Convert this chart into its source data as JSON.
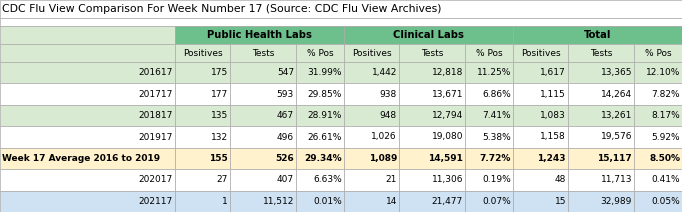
{
  "title": "CDC Flu View Comparison For Week Number 17 (Source: CDC Flu View Archives)",
  "group_labels": [
    "Public Health Labs",
    "Clinical Labs",
    "Total"
  ],
  "sub_labels": [
    "Positives",
    "Tests",
    "% Pos",
    "Positives",
    "Tests",
    "% Pos",
    "Positives",
    "Tests",
    "% Pos"
  ],
  "rows": [
    {
      "label": "201617",
      "label_align": "right",
      "bold": false,
      "bg": "#d9ead3",
      "values": [
        "175",
        "547",
        "31.99%",
        "1,442",
        "12,818",
        "11.25%",
        "1,617",
        "13,365",
        "12.10%"
      ]
    },
    {
      "label": "201717",
      "label_align": "right",
      "bold": false,
      "bg": "#ffffff",
      "values": [
        "177",
        "593",
        "29.85%",
        "938",
        "13,671",
        "6.86%",
        "1,115",
        "14,264",
        "7.82%"
      ]
    },
    {
      "label": "201817",
      "label_align": "right",
      "bold": false,
      "bg": "#d9ead3",
      "values": [
        "135",
        "467",
        "28.91%",
        "948",
        "12,794",
        "7.41%",
        "1,083",
        "13,261",
        "8.17%"
      ]
    },
    {
      "label": "201917",
      "label_align": "right",
      "bold": false,
      "bg": "#ffffff",
      "values": [
        "132",
        "496",
        "26.61%",
        "1,026",
        "19,080",
        "5.38%",
        "1,158",
        "19,576",
        "5.92%"
      ]
    },
    {
      "label": "Week 17 Average 2016 to 2019",
      "label_align": "left",
      "bold": true,
      "bg": "#fff2cc",
      "values": [
        "155",
        "526",
        "29.34%",
        "1,089",
        "14,591",
        "7.72%",
        "1,243",
        "15,117",
        "8.50%"
      ]
    },
    {
      "label": "202017",
      "label_align": "right",
      "bold": false,
      "bg": "#ffffff",
      "values": [
        "27",
        "407",
        "6.63%",
        "21",
        "11,306",
        "0.19%",
        "48",
        "11,713",
        "0.41%"
      ]
    },
    {
      "label": "202117",
      "label_align": "right",
      "bold": false,
      "bg": "#cfe2f3",
      "values": [
        "1",
        "11,512",
        "0.01%",
        "14",
        "21,477",
        "0.07%",
        "15",
        "32,989",
        "0.05%"
      ]
    }
  ],
  "group_header_bg": "#6dbf8b",
  "subheader_bg": "#d9ead3",
  "label_col_empty_bg": "#d9ead3",
  "title_fontsize": 7.8,
  "group_fontsize": 7.2,
  "subheader_fontsize": 6.5,
  "cell_fontsize": 6.5,
  "border_color": "#aaaaaa",
  "title_border_color": "#aaaaaa"
}
